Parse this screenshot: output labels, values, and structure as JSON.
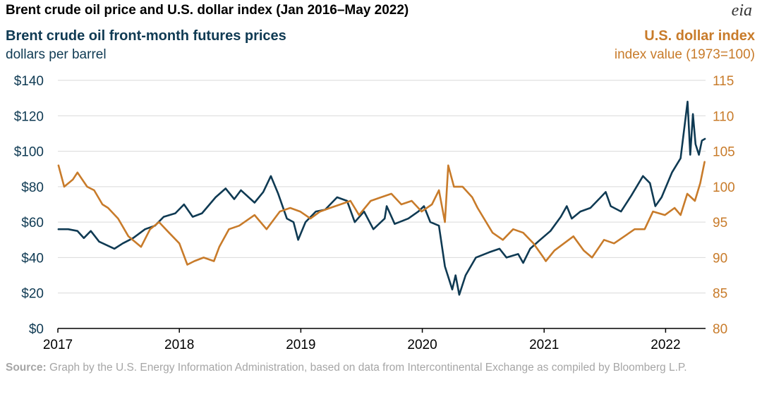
{
  "title": "Brent crude oil price and U.S. dollar index (Jan 2016–May 2022)",
  "logo_text": "eia",
  "left_series_title": "Brent crude oil front-month futures prices",
  "left_series_unit": "dollars per barrel",
  "right_series_title": "U.S. dollar index",
  "right_series_unit": "index value (1973=100)",
  "source_label": "Source:",
  "source_text": " Graph by the U.S. Energy Information Administration, based on data from Intercontinental Exchange as compiled by Bloomberg L.P.",
  "colors": {
    "brent": "#0f3a53",
    "dollar": "#c87b2a",
    "grid": "#d9d9d9",
    "axis": "#000000"
  },
  "chart_data": {
    "type": "line",
    "x_axis": {
      "ticks": [
        "2017",
        "2018",
        "2019",
        "2020",
        "2021",
        "2022"
      ],
      "range": [
        "2017-01",
        "2022-05"
      ]
    },
    "y_left": {
      "range": [
        0,
        140
      ],
      "ticks": [
        "$0",
        "$20",
        "$40",
        "$60",
        "$80",
        "$100",
        "$120",
        "$140"
      ]
    },
    "y_right": {
      "range": [
        80,
        115
      ],
      "ticks": [
        "80",
        "85",
        "90",
        "95",
        "100",
        "105",
        "110",
        "115"
      ]
    },
    "grid": true,
    "series": [
      {
        "name": "Brent crude oil front-month futures prices",
        "axis": "left",
        "points": [
          [
            "2017-01-03",
            56
          ],
          [
            "2017-02-01",
            56
          ],
          [
            "2017-03-01",
            55
          ],
          [
            "2017-03-20",
            51
          ],
          [
            "2017-04-10",
            55
          ],
          [
            "2017-05-05",
            49
          ],
          [
            "2017-06-20",
            45
          ],
          [
            "2017-07-15",
            48
          ],
          [
            "2017-08-15",
            51
          ],
          [
            "2017-09-20",
            56
          ],
          [
            "2017-10-20",
            58
          ],
          [
            "2017-11-15",
            63
          ],
          [
            "2017-12-20",
            65
          ],
          [
            "2018-01-15",
            70
          ],
          [
            "2018-02-10",
            63
          ],
          [
            "2018-03-10",
            65
          ],
          [
            "2018-04-20",
            74
          ],
          [
            "2018-05-20",
            79
          ],
          [
            "2018-06-15",
            73
          ],
          [
            "2018-07-05",
            78
          ],
          [
            "2018-08-15",
            71
          ],
          [
            "2018-09-10",
            77
          ],
          [
            "2018-10-03",
            86
          ],
          [
            "2018-10-25",
            76
          ],
          [
            "2018-11-20",
            62
          ],
          [
            "2018-12-10",
            60
          ],
          [
            "2018-12-24",
            50
          ],
          [
            "2019-01-15",
            60
          ],
          [
            "2019-02-15",
            66
          ],
          [
            "2019-03-15",
            67
          ],
          [
            "2019-04-20",
            74
          ],
          [
            "2019-05-20",
            72
          ],
          [
            "2019-06-12",
            60
          ],
          [
            "2019-07-10",
            66
          ],
          [
            "2019-08-07",
            56
          ],
          [
            "2019-09-10",
            62
          ],
          [
            "2019-09-16",
            69
          ],
          [
            "2019-10-10",
            59
          ],
          [
            "2019-11-20",
            62
          ],
          [
            "2019-12-20",
            66
          ],
          [
            "2020-01-06",
            69
          ],
          [
            "2020-01-25",
            60
          ],
          [
            "2020-02-20",
            58
          ],
          [
            "2020-03-09",
            35
          ],
          [
            "2020-03-31",
            22
          ],
          [
            "2020-04-10",
            30
          ],
          [
            "2020-04-21",
            19
          ],
          [
            "2020-05-10",
            30
          ],
          [
            "2020-06-10",
            40
          ],
          [
            "2020-07-20",
            43
          ],
          [
            "2020-08-20",
            45
          ],
          [
            "2020-09-10",
            40
          ],
          [
            "2020-10-15",
            42
          ],
          [
            "2020-10-30",
            37
          ],
          [
            "2020-11-20",
            45
          ],
          [
            "2020-12-20",
            50
          ],
          [
            "2021-01-20",
            55
          ],
          [
            "2021-02-20",
            63
          ],
          [
            "2021-03-10",
            69
          ],
          [
            "2021-03-25",
            62
          ],
          [
            "2021-04-20",
            66
          ],
          [
            "2021-05-20",
            68
          ],
          [
            "2021-06-20",
            74
          ],
          [
            "2021-07-05",
            77
          ],
          [
            "2021-07-20",
            69
          ],
          [
            "2021-08-20",
            66
          ],
          [
            "2021-09-20",
            75
          ],
          [
            "2021-10-25",
            86
          ],
          [
            "2021-11-15",
            82
          ],
          [
            "2021-12-01",
            69
          ],
          [
            "2021-12-20",
            74
          ],
          [
            "2022-01-20",
            88
          ],
          [
            "2022-02-15",
            96
          ],
          [
            "2022-03-08",
            128
          ],
          [
            "2022-03-16",
            98
          ],
          [
            "2022-03-24",
            121
          ],
          [
            "2022-04-01",
            104
          ],
          [
            "2022-04-11",
            98
          ],
          [
            "2022-04-20",
            106
          ],
          [
            "2022-04-29",
            107
          ]
        ]
      },
      {
        "name": "U.S. dollar index",
        "axis": "right",
        "points": [
          [
            "2017-01-03",
            103
          ],
          [
            "2017-01-20",
            100
          ],
          [
            "2017-02-15",
            101
          ],
          [
            "2017-03-01",
            102
          ],
          [
            "2017-03-30",
            100
          ],
          [
            "2017-04-20",
            99.5
          ],
          [
            "2017-05-15",
            97.5
          ],
          [
            "2017-06-01",
            97
          ],
          [
            "2017-07-01",
            95.5
          ],
          [
            "2017-08-01",
            93
          ],
          [
            "2017-09-08",
            91.5
          ],
          [
            "2017-10-05",
            94
          ],
          [
            "2017-11-01",
            95
          ],
          [
            "2017-12-01",
            93.5
          ],
          [
            "2018-01-01",
            92
          ],
          [
            "2018-01-25",
            89
          ],
          [
            "2018-02-15",
            89.5
          ],
          [
            "2018-03-15",
            90
          ],
          [
            "2018-04-15",
            89.5
          ],
          [
            "2018-05-01",
            91.5
          ],
          [
            "2018-05-30",
            94
          ],
          [
            "2018-06-30",
            94.5
          ],
          [
            "2018-08-15",
            96
          ],
          [
            "2018-09-20",
            94
          ],
          [
            "2018-10-30",
            96.5
          ],
          [
            "2018-11-30",
            97
          ],
          [
            "2018-12-30",
            96.5
          ],
          [
            "2019-01-30",
            95.5
          ],
          [
            "2019-02-28",
            96.5
          ],
          [
            "2019-03-30",
            97
          ],
          [
            "2019-04-30",
            97.5
          ],
          [
            "2019-05-30",
            98
          ],
          [
            "2019-06-25",
            96
          ],
          [
            "2019-07-30",
            98
          ],
          [
            "2019-08-30",
            98.5
          ],
          [
            "2019-09-30",
            99
          ],
          [
            "2019-10-30",
            97.5
          ],
          [
            "2019-11-30",
            98
          ],
          [
            "2019-12-30",
            96.5
          ],
          [
            "2020-01-30",
            97.5
          ],
          [
            "2020-02-20",
            99.5
          ],
          [
            "2020-03-09",
            95
          ],
          [
            "2020-03-19",
            103
          ],
          [
            "2020-04-05",
            100
          ],
          [
            "2020-05-01",
            100
          ],
          [
            "2020-05-30",
            98.5
          ],
          [
            "2020-06-15",
            97
          ],
          [
            "2020-07-30",
            93.5
          ],
          [
            "2020-08-30",
            92.5
          ],
          [
            "2020-09-30",
            94
          ],
          [
            "2020-10-30",
            93.5
          ],
          [
            "2020-11-30",
            92
          ],
          [
            "2020-12-30",
            90
          ],
          [
            "2021-01-06",
            89.5
          ],
          [
            "2021-02-01",
            91
          ],
          [
            "2021-03-30",
            93
          ],
          [
            "2021-04-30",
            91
          ],
          [
            "2021-05-25",
            90
          ],
          [
            "2021-06-30",
            92.5
          ],
          [
            "2021-07-30",
            92
          ],
          [
            "2021-08-30",
            93
          ],
          [
            "2021-09-30",
            94
          ],
          [
            "2021-10-30",
            94
          ],
          [
            "2021-11-24",
            96.5
          ],
          [
            "2021-12-30",
            96
          ],
          [
            "2022-01-28",
            97
          ],
          [
            "2022-02-15",
            96
          ],
          [
            "2022-03-07",
            99
          ],
          [
            "2022-03-30",
            98
          ],
          [
            "2022-04-15",
            100.5
          ],
          [
            "2022-04-28",
            103.5
          ]
        ]
      }
    ]
  }
}
